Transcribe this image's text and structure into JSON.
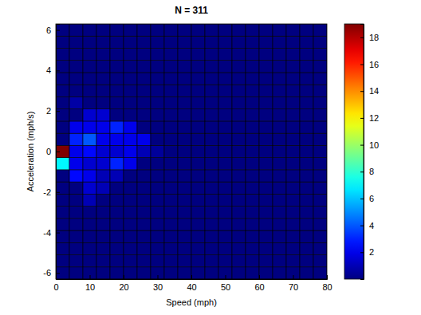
{
  "chart_data": {
    "type": "heatmap",
    "title": "N = 311",
    "x_label": "Speed (mph)",
    "y_label": "Acceleration (mph/s)",
    "xlim": [
      0,
      80
    ],
    "xticks": [
      0,
      10,
      20,
      30,
      40,
      50,
      60,
      70,
      80
    ],
    "ylim": [
      -6.3,
      6.3
    ],
    "yticks": [
      -6,
      -4,
      -2,
      0,
      2,
      4,
      6
    ],
    "x_bins": [
      0,
      4,
      8,
      12,
      16,
      20,
      24,
      28,
      32,
      36,
      40,
      44,
      48,
      52,
      56,
      60,
      64,
      68,
      72,
      76,
      80
    ],
    "y_bins": [
      -6.3,
      -5.7,
      -5.1,
      -4.5,
      -3.9,
      -3.3,
      -2.7,
      -2.1,
      -1.5,
      -0.9,
      -0.3,
      0.3,
      0.9,
      1.5,
      2.1,
      2.7,
      3.3,
      3.9,
      4.5,
      5.1,
      5.7,
      6.3
    ],
    "z": [
      [
        0,
        0,
        0,
        0,
        0,
        0,
        0,
        0,
        0,
        0,
        0,
        0,
        0,
        0,
        0,
        0,
        0,
        0,
        0,
        0
      ],
      [
        0,
        0,
        0,
        0,
        0,
        0,
        0,
        0,
        0,
        0,
        0,
        0,
        0,
        0,
        0,
        0,
        0,
        0,
        0,
        0
      ],
      [
        0,
        0,
        0,
        0,
        0,
        0,
        0,
        0,
        0,
        0,
        0,
        0,
        0,
        0,
        0,
        0,
        0,
        0,
        0,
        0
      ],
      [
        0,
        0,
        0,
        0,
        0,
        0,
        0,
        0,
        0,
        0,
        0,
        0,
        0,
        0,
        0,
        0,
        0,
        0,
        0,
        0
      ],
      [
        0,
        0,
        0,
        0,
        0,
        0,
        0,
        0,
        0,
        0,
        0,
        0,
        0,
        0,
        0,
        0,
        0,
        0,
        0,
        0
      ],
      [
        0,
        0,
        0,
        0,
        0,
        0,
        0,
        0,
        0,
        0,
        0,
        0,
        0,
        0,
        0,
        0,
        0,
        0,
        0,
        0
      ],
      [
        0,
        0,
        1,
        0,
        0,
        0,
        0,
        0,
        0,
        0,
        0,
        0,
        0,
        0,
        0,
        0,
        0,
        0,
        0,
        0
      ],
      [
        0,
        0,
        1.5,
        1,
        0,
        0,
        0,
        0,
        0,
        0,
        0,
        0,
        0,
        0,
        0,
        0,
        0,
        0,
        0,
        0
      ],
      [
        0,
        2.5,
        2,
        1,
        1,
        0,
        0,
        0,
        0,
        0,
        0,
        0,
        0,
        0,
        0,
        0,
        0,
        0,
        0,
        0
      ],
      [
        7,
        2,
        1.5,
        1.5,
        3,
        2,
        0,
        0,
        0,
        0,
        0,
        0,
        0,
        0,
        0,
        0,
        0,
        0,
        0,
        0
      ],
      [
        19,
        2,
        2.5,
        1.5,
        1.5,
        2,
        1,
        0.5,
        0,
        0,
        0,
        0,
        0,
        0,
        0,
        0,
        0,
        0,
        0,
        0
      ],
      [
        0,
        3,
        4,
        2,
        2,
        2,
        2,
        0,
        0,
        0,
        0,
        0,
        0,
        0,
        0,
        0,
        0,
        0,
        0,
        0
      ],
      [
        0,
        2,
        2,
        2,
        3,
        2,
        0,
        0,
        0,
        0,
        0,
        0,
        0,
        0,
        0,
        0,
        0,
        0,
        0,
        0
      ],
      [
        0,
        0,
        1.5,
        1.5,
        0,
        0,
        0,
        0,
        0,
        0,
        0,
        0,
        0,
        0,
        0,
        0,
        0,
        0,
        0,
        0
      ],
      [
        0,
        0.7,
        0,
        0,
        0,
        0,
        0,
        0,
        0,
        0,
        0,
        0,
        0,
        0,
        0,
        0,
        0,
        0,
        0,
        0
      ],
      [
        0,
        0,
        0,
        0,
        0,
        0,
        0,
        0,
        0,
        0,
        0,
        0,
        0,
        0,
        0,
        0,
        0,
        0,
        0,
        0
      ],
      [
        0,
        0,
        0,
        0,
        0,
        0,
        0,
        0,
        0,
        0,
        0,
        0,
        0,
        0,
        0,
        0,
        0,
        0,
        0,
        0
      ],
      [
        0,
        0,
        0,
        0,
        0,
        0,
        0,
        0,
        0,
        0,
        0,
        0,
        0,
        0,
        0,
        0,
        0,
        0,
        0,
        0
      ],
      [
        0,
        0,
        0,
        0,
        0,
        0,
        0,
        0,
        0,
        0,
        0,
        0,
        0,
        0,
        0,
        0,
        0,
        0,
        0,
        0
      ],
      [
        0,
        0,
        0,
        0,
        0,
        0,
        0,
        0,
        0,
        0,
        0,
        0,
        0,
        0,
        0,
        0,
        0,
        0,
        0,
        0
      ],
      [
        0,
        0,
        0,
        0,
        0,
        0,
        0,
        0,
        0,
        0,
        0,
        0,
        0,
        0,
        0,
        0,
        0,
        0,
        0,
        0
      ]
    ],
    "zlim": [
      0,
      19
    ],
    "zticks": [
      2,
      4,
      6,
      8,
      10,
      12,
      14,
      16,
      18
    ],
    "color": "jet"
  }
}
